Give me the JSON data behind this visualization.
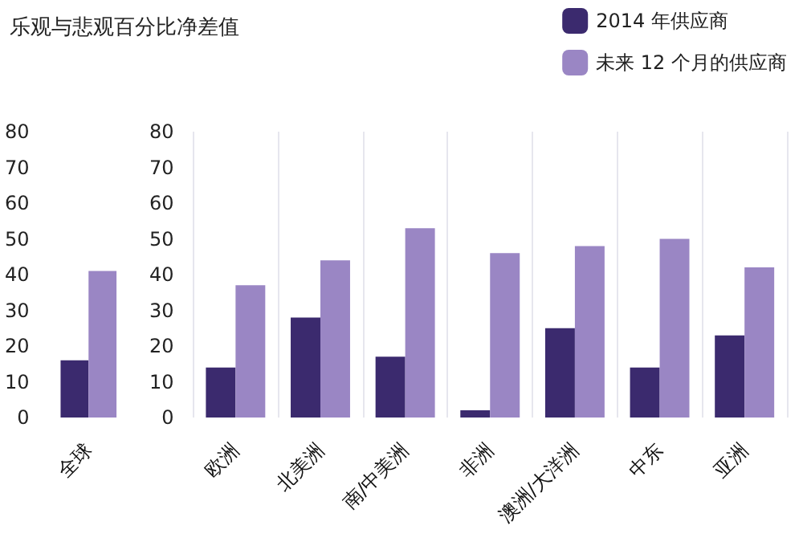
{
  "chart_data": [
    {
      "type": "bar",
      "title": "乐观与悲观百分比净差值",
      "categories": [
        "全球"
      ],
      "series": [
        {
          "color": "#3b2a6e",
          "values": [
            16
          ]
        },
        {
          "color": "#9a86c4",
          "values": [
            41
          ]
        }
      ],
      "ylim": [
        0,
        80
      ],
      "yticks": [
        0,
        10,
        20,
        30,
        40,
        50,
        60,
        70,
        80
      ],
      "grid": false,
      "legend": false
    },
    {
      "type": "bar",
      "categories": [
        "欧洲",
        "北美洲",
        "南/中美洲",
        "非洲",
        "澳洲/大洋洲",
        "中东",
        "亚洲"
      ],
      "series": [
        {
          "name": "2014 年供应商",
          "color": "#3b2a6e",
          "values": [
            14,
            28,
            17,
            2,
            25,
            14,
            23
          ]
        },
        {
          "name": "未来 12 个月的供应商",
          "color": "#9a86c4",
          "values": [
            37,
            44,
            53,
            46,
            48,
            50,
            42
          ]
        }
      ],
      "ylim": [
        0,
        80
      ],
      "yticks": [
        0,
        10,
        20,
        30,
        40,
        50,
        60,
        70,
        80
      ],
      "grid": "x",
      "legend": "top right"
    }
  ]
}
